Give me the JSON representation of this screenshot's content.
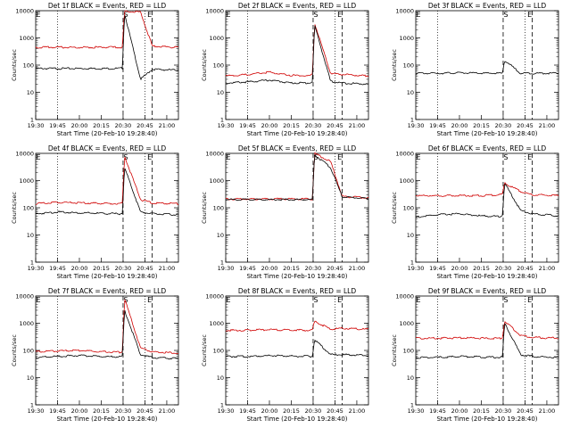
{
  "chart_data": {
    "type": "line",
    "y_scale": "log",
    "ylim": [
      1,
      10000
    ],
    "y_ticks": [
      "1",
      "10",
      "100",
      "1000",
      "10000"
    ],
    "ylabel": "Counts/sec",
    "x_ticks": [
      "19:30",
      "19:45",
      "20:00",
      "20:15",
      "20:30",
      "20:45",
      "21:00"
    ],
    "xlabel": "Start Time (20-Feb-10 19:28:40)",
    "dotted_lines_at": [
      "19:45",
      "20:45"
    ],
    "dashed_lines_at": [
      "20:30",
      "20:50"
    ],
    "colors": {
      "Events": "#000000",
      "LLD": "#d00000"
    },
    "panels": [
      {
        "title": "Det 1f BLACK = Events, RED = LLD",
        "marker_s": "S",
        "marker_e": "E",
        "series": [
          {
            "name": "Events",
            "values": [
              75,
              75,
              75,
              75,
              75,
              78,
              8000,
              30,
              70,
              65
            ]
          },
          {
            "name": "LLD",
            "values": [
              450,
              450,
              450,
              450,
              450,
              460,
              9500,
              9000,
              500,
              450
            ]
          }
        ]
      },
      {
        "title": "Det 2f BLACK = Events, RED = LLD",
        "marker_s": "S",
        "marker_e": "E",
        "series": [
          {
            "name": "Events",
            "values": [
              22,
              24,
              28,
              22,
              22,
              25,
              3000,
              25,
              22,
              20
            ]
          },
          {
            "name": "LLD",
            "values": [
              40,
              45,
              55,
              42,
              40,
              45,
              3500,
              50,
              45,
              40
            ]
          }
        ]
      },
      {
        "title": "Det 3f BLACK = Events, RED = LLD",
        "marker_s": "S",
        "marker_e": "E",
        "series": [
          {
            "name": "Events",
            "values": [
              50,
              50,
              52,
              50,
              50,
              50,
              150,
              50,
              50,
              50
            ]
          }
        ]
      },
      {
        "title": "Det 4f BLACK = Events, RED = LLD",
        "marker_s": "S",
        "marker_e": "E",
        "series": [
          {
            "name": "Events",
            "values": [
              60,
              70,
              65,
              62,
              60,
              62,
              3000,
              70,
              60,
              55
            ]
          },
          {
            "name": "LLD",
            "values": [
              140,
              160,
              150,
              145,
              140,
              145,
              8000,
              200,
              150,
              140
            ]
          }
        ]
      },
      {
        "title": "Det 5f BLACK = Events, RED = LLD",
        "marker_s": "S",
        "marker_e": "E",
        "series": [
          {
            "name": "Events",
            "values": [
              200,
              200,
              200,
              200,
              200,
              200,
              9000,
              3000,
              250,
              220
            ]
          },
          {
            "name": "LLD",
            "values": [
              210,
              210,
              210,
              210,
              210,
              210,
              10000,
              5000,
              260,
              230
            ]
          }
        ]
      },
      {
        "title": "Det 6f BLACK = Events, RED = LLD",
        "marker_s": "S",
        "marker_e": "E",
        "series": [
          {
            "name": "Events",
            "values": [
              45,
              55,
              60,
              50,
              48,
              55,
              800,
              80,
              60,
              50
            ]
          },
          {
            "name": "LLD",
            "values": [
              280,
              280,
              280,
              280,
              300,
              320,
              800,
              400,
              300,
              280
            ]
          }
        ]
      },
      {
        "title": "Det 7f BLACK = Events, RED = LLD",
        "marker_s": "S",
        "marker_e": "E",
        "series": [
          {
            "name": "Events",
            "values": [
              55,
              60,
              65,
              60,
              58,
              62,
              3000,
              70,
              55,
              50
            ]
          },
          {
            "name": "LLD",
            "values": [
              90,
              95,
              100,
              90,
              85,
              95,
              8000,
              120,
              90,
              80
            ]
          }
        ]
      },
      {
        "title": "Det 8f BLACK = Events, RED = LLD",
        "marker_s": "S",
        "marker_e": "E",
        "series": [
          {
            "name": "Events",
            "values": [
              60,
              60,
              65,
              62,
              60,
              62,
              250,
              70,
              70,
              65
            ]
          },
          {
            "name": "LLD",
            "values": [
              550,
              550,
              580,
              560,
              550,
              560,
              1200,
              600,
              650,
              600
            ]
          }
        ]
      },
      {
        "title": "Det 9f BLACK = Events, RED = LLD",
        "marker_s": "S",
        "marker_e": "E",
        "series": [
          {
            "name": "Events",
            "values": [
              55,
              55,
              60,
              58,
              55,
              58,
              1000,
              70,
              60,
              55
            ]
          },
          {
            "name": "LLD",
            "values": [
              280,
              280,
              290,
              280,
              280,
              290,
              1200,
              350,
              300,
              280
            ]
          }
        ]
      }
    ]
  }
}
